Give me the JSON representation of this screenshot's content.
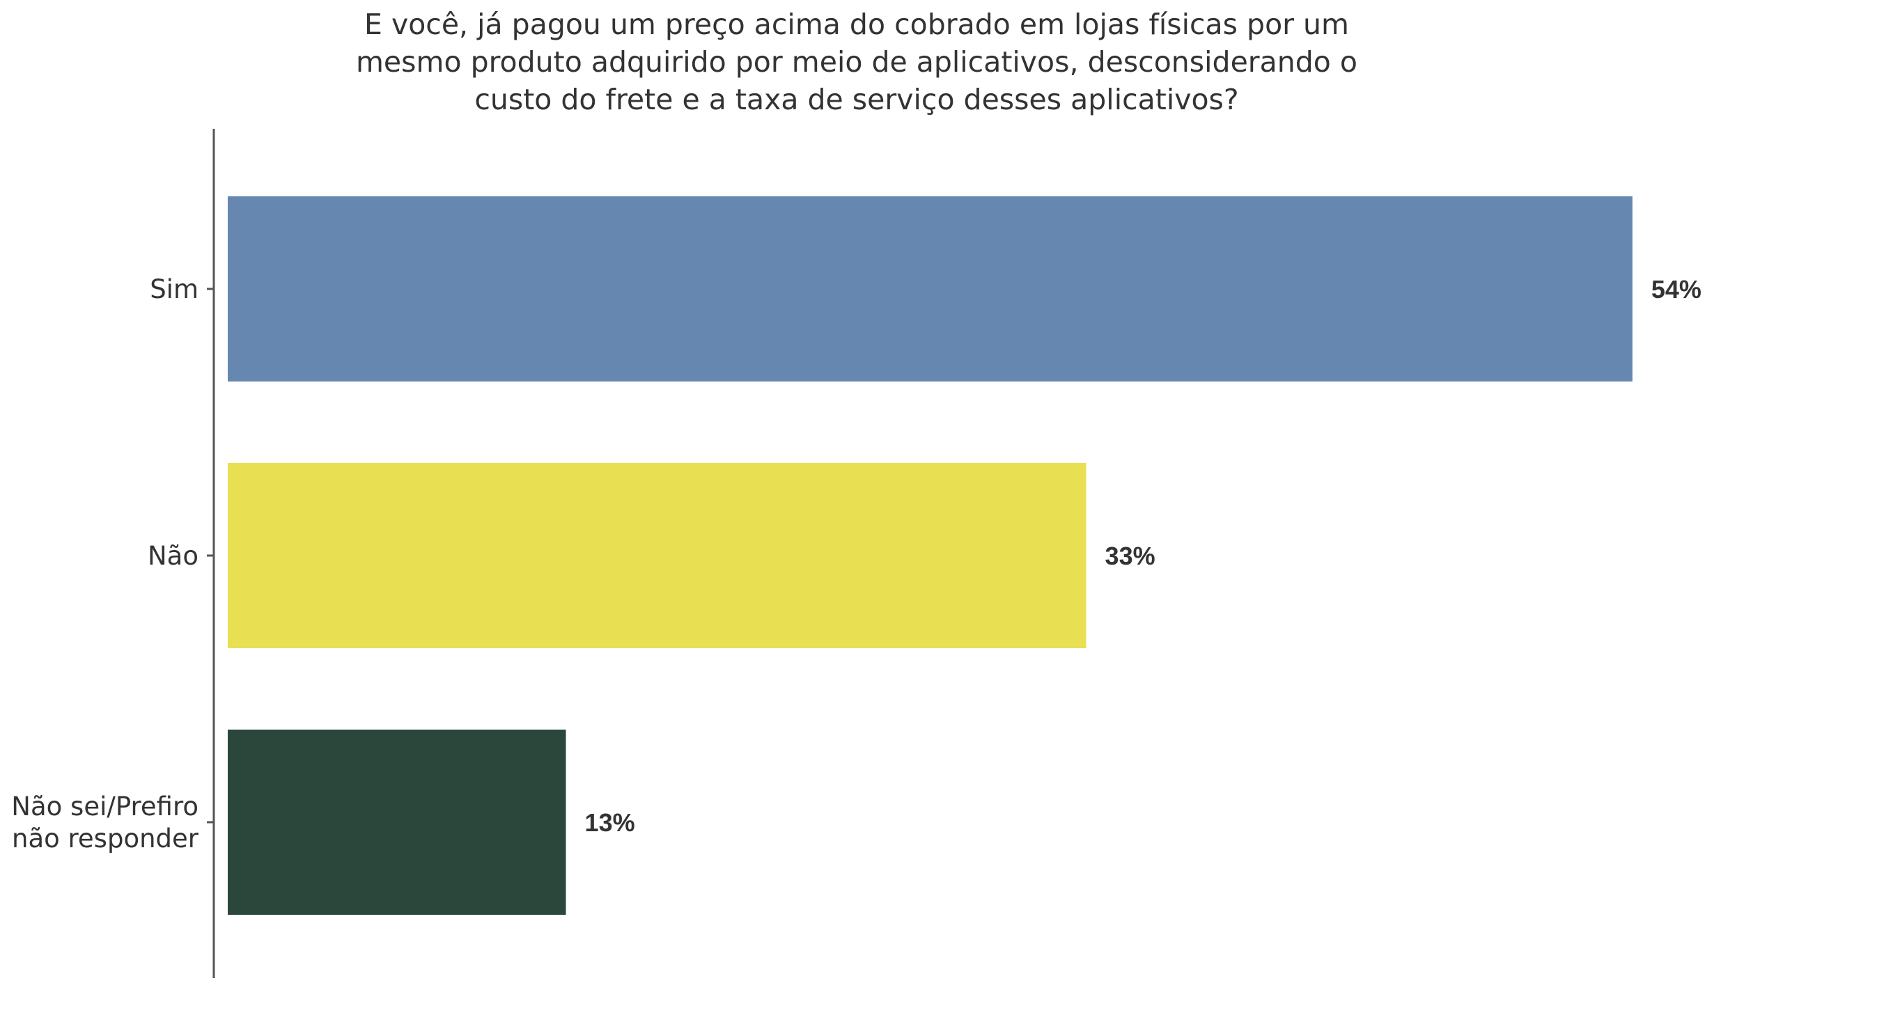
{
  "chart_data": {
    "type": "bar",
    "orientation": "horizontal",
    "title_lines": [
      "E você, já pagou um preço acima do cobrado em lojas físicas por um",
      "mesmo produto adquirido por meio de aplicativos, desconsiderando o",
      "custo do frete e a taxa de serviço desses aplicativos?"
    ],
    "categories": [
      [
        "Sim"
      ],
      [
        "Não"
      ],
      [
        "Não sei/Prefiro",
        "não responder"
      ]
    ],
    "values": [
      54,
      33,
      13
    ],
    "value_labels": [
      "54%",
      "33%",
      "13%"
    ],
    "colors": [
      "#6688b0",
      "#e8df52",
      "#2b473c"
    ],
    "xlim": [
      0,
      65
    ],
    "grid": false,
    "legend": "none"
  }
}
